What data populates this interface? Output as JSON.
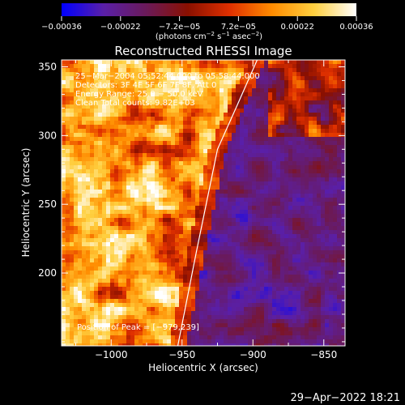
{
  "chart_data": {
    "type": "heatmap",
    "title": "Reconstructed RHESSI Image",
    "xlabel": "Heliocentric X (arcsec)",
    "ylabel": "Heliocentric Y (arcsec)",
    "xlim": [
      -1035,
      -835
    ],
    "ylim": [
      147,
      355
    ],
    "xticks": [
      {
        "value": -1000,
        "label": "−1000"
      },
      {
        "value": -950,
        "label": "−950"
      },
      {
        "value": -900,
        "label": "−900"
      },
      {
        "value": -850,
        "label": "−850"
      }
    ],
    "yticks": [
      {
        "value": 200,
        "label": "200"
      },
      {
        "value": 250,
        "label": "250"
      },
      {
        "value": 300,
        "label": "300"
      },
      {
        "value": 350,
        "label": "350"
      }
    ],
    "colorbar": {
      "min": -0.00036,
      "max": 0.00036,
      "ticks": [
        "−0.00036",
        "−0.00022",
        "−7.2e−05",
        "7.2e−05",
        "0.00022",
        "0.00036"
      ],
      "unit_label": "(photons cm",
      "unit_exp1": "−2",
      "unit_mid": " s",
      "unit_exp2": "−1",
      "unit_end": " asec",
      "unit_exp3": "−2",
      "unit_close": ")",
      "colors": [
        "#0000ff",
        "#5a1fa8",
        "#6a1a5a",
        "#8a1000",
        "#e03000",
        "#ff8c00",
        "#ffd040",
        "#ffffff"
      ]
    },
    "limb": [
      {
        "x": -953,
        "y": 147
      },
      {
        "x": -940,
        "y": 215
      },
      {
        "x": -925,
        "y": 290
      },
      {
        "x": -912,
        "y": 320
      },
      {
        "x": -897,
        "y": 355
      }
    ],
    "annotations": [
      "25−Mar−2004 05:52:44.000 to 05:58:44.000",
      "Detectors: 3F 4F 5F 6F 7F 8F, Att 0",
      "Energy Range: 25.0 − 50.0 keV",
      "Clean     Total counts: 9.82E+03"
    ],
    "peak_label": "Position of Peak = [−979,239]",
    "peak": {
      "x": -979,
      "y": 239
    }
  },
  "footer_date": "29−Apr−2022 18:21"
}
